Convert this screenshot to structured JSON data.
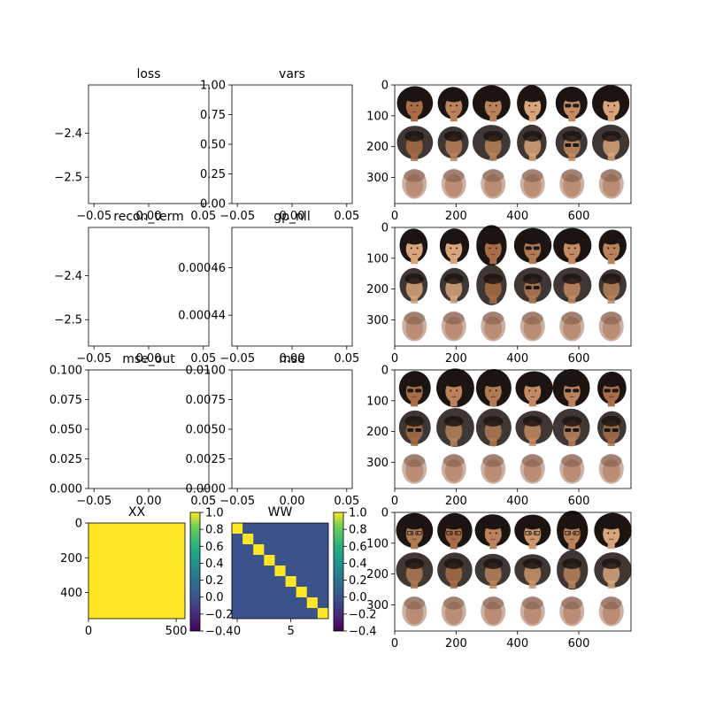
{
  "figure": {
    "colors": {
      "axes_edge": "#000000",
      "background": "#ffffff",
      "viridis_yellow": "#fde725",
      "viridis_teal": "#3b528b",
      "viridis_purple": "#440154"
    }
  },
  "chart_data": [
    {
      "id": "loss",
      "type": "line",
      "title": "loss",
      "xlabel": "",
      "ylabel": "",
      "series": [],
      "xlim": [
        -0.055,
        0.055
      ],
      "ylim": [
        -2.56,
        -2.29
      ],
      "xticks": [
        -0.05,
        0.0,
        0.05
      ],
      "xtick_labels": [
        "−0.05",
        "0.00",
        "0.05"
      ],
      "yticks": [
        -2.4,
        -2.5
      ],
      "ytick_labels": [
        "−2.4",
        "−2.5"
      ],
      "grid": false
    },
    {
      "id": "vars",
      "type": "line",
      "title": "vars",
      "xlabel": "",
      "ylabel": "",
      "series": [],
      "xlim": [
        -0.055,
        0.055
      ],
      "ylim": [
        0.0,
        1.0
      ],
      "xticks": [
        -0.05,
        0.0,
        0.05
      ],
      "xtick_labels": [
        "−0.05",
        "0.00",
        "0.05"
      ],
      "yticks": [
        0.0,
        0.25,
        0.5,
        0.75,
        1.0
      ],
      "ytick_labels": [
        "0.00",
        "0.25",
        "0.50",
        "0.75",
        "1.00"
      ],
      "grid": false
    },
    {
      "id": "recon_term",
      "type": "line",
      "title": "recon_term",
      "xlabel": "",
      "ylabel": "",
      "series": [],
      "xlim": [
        -0.055,
        0.055
      ],
      "ylim": [
        -2.56,
        -2.29
      ],
      "xticks": [
        -0.05,
        0.0,
        0.05
      ],
      "xtick_labels": [
        "−0.05",
        "0.00",
        "0.05"
      ],
      "yticks": [
        -2.4,
        -2.5
      ],
      "ytick_labels": [
        "−2.4",
        "−2.5"
      ],
      "grid": false
    },
    {
      "id": "gp_nll",
      "type": "line",
      "title": "gp_nll",
      "xlabel": "",
      "ylabel": "",
      "series": [],
      "xlim": [
        -0.055,
        0.055
      ],
      "ylim": [
        0.000427,
        0.000477
      ],
      "xticks": [
        -0.05,
        0.0,
        0.05
      ],
      "xtick_labels": [
        "−0.05",
        "0.00",
        "0.05"
      ],
      "yticks": [
        0.00046,
        0.00044
      ],
      "ytick_labels": [
        "0.00046",
        "0.00044"
      ],
      "grid": false
    },
    {
      "id": "mse_out",
      "type": "line",
      "title": "mse_out",
      "xlabel": "",
      "ylabel": "",
      "series": [],
      "xlim": [
        -0.055,
        0.055
      ],
      "ylim": [
        0.0,
        0.1
      ],
      "xticks": [
        -0.05,
        0.0,
        0.05
      ],
      "xtick_labels": [
        "−0.05",
        "0.00",
        "0.05"
      ],
      "yticks": [
        0.0,
        0.025,
        0.05,
        0.075,
        0.1
      ],
      "ytick_labels": [
        "0.000",
        "0.025",
        "0.050",
        "0.075",
        "0.100"
      ],
      "grid": false
    },
    {
      "id": "mse",
      "type": "line",
      "title": "mse",
      "xlabel": "",
      "ylabel": "",
      "series": [],
      "xlim": [
        -0.055,
        0.055
      ],
      "ylim": [
        0.0,
        0.01
      ],
      "xticks": [
        -0.05,
        0.0,
        0.05
      ],
      "xtick_labels": [
        "−0.05",
        "0.00",
        "0.05"
      ],
      "yticks": [
        0.0,
        0.0025,
        0.005,
        0.0075,
        0.01
      ],
      "ytick_labels": [
        "0.0000",
        "0.0025",
        "0.0050",
        "0.0075",
        "0.0100"
      ],
      "grid": false
    },
    {
      "id": "XX",
      "type": "heatmap",
      "title": "XX",
      "description_value": "uniform matrix of value 1.0",
      "value": 1.0,
      "size": 550,
      "xlim": [
        0,
        550
      ],
      "ylim": [
        550,
        0
      ],
      "xticks": [
        0,
        500
      ],
      "xtick_labels": [
        "0",
        "500"
      ],
      "yticks": [
        0,
        200,
        400
      ],
      "ytick_labels": [
        "0",
        "200",
        "400"
      ],
      "colorbar": {
        "min": -0.4,
        "max": 1.0,
        "ticks": [
          1.0,
          0.8,
          0.6,
          0.4,
          0.2,
          0.0,
          -0.2,
          -0.4
        ],
        "tick_labels": [
          "1.0",
          "0.8",
          "0.6",
          "0.4",
          "0.2",
          "0.0",
          "−0.2",
          "−0.4"
        ]
      }
    },
    {
      "id": "WW",
      "type": "heatmap",
      "title": "WW",
      "n": 9,
      "diagonal_value": 1.0,
      "offdiagonal_value": 0.0,
      "xlim": [
        -0.5,
        8.5
      ],
      "ylim": [
        8.5,
        -0.5
      ],
      "xticks": [
        0,
        5
      ],
      "xtick_labels": [
        "0",
        "5"
      ],
      "yticks": [],
      "ytick_labels": [],
      "colorbar": {
        "min": -0.4,
        "max": 1.0,
        "ticks": [
          1.0,
          0.8,
          0.6,
          0.4,
          0.2,
          0.0,
          -0.2,
          -0.4
        ],
        "tick_labels": [
          "1.0",
          "0.8",
          "0.6",
          "0.4",
          "0.2",
          "0.0",
          "−0.2",
          "−0.4"
        ]
      }
    },
    {
      "id": "faces_1",
      "type": "image",
      "title": "",
      "rows": 3,
      "cols": 6,
      "xlim": [
        0,
        770
      ],
      "ylim": [
        385,
        0
      ],
      "xticks": [
        0,
        200,
        400,
        600
      ],
      "xtick_labels": [
        "0",
        "200",
        "400",
        "600"
      ],
      "yticks": [
        0,
        100,
        200,
        300
      ],
      "ytick_labels": [
        "0",
        "100",
        "200",
        "300"
      ],
      "row_kinds": [
        "original",
        "reconstruction",
        "blurry"
      ],
      "accessories": [
        "none",
        "none",
        "none",
        "none",
        "sunglasses",
        "none"
      ]
    },
    {
      "id": "faces_2",
      "type": "image",
      "title": "",
      "rows": 3,
      "cols": 6,
      "xlim": [
        0,
        770
      ],
      "ylim": [
        385,
        0
      ],
      "xticks": [
        0,
        200,
        400,
        600
      ],
      "xtick_labels": [
        "0",
        "200",
        "400",
        "600"
      ],
      "yticks": [
        0,
        100,
        200,
        300
      ],
      "ytick_labels": [
        "0",
        "100",
        "200",
        "300"
      ],
      "row_kinds": [
        "original",
        "reconstruction",
        "blurry"
      ],
      "accessories": [
        "none",
        "none",
        "none",
        "sunglasses",
        "none",
        "none"
      ]
    },
    {
      "id": "faces_3",
      "type": "image",
      "title": "",
      "rows": 3,
      "cols": 6,
      "xlim": [
        0,
        770
      ],
      "ylim": [
        385,
        0
      ],
      "xticks": [
        0,
        200,
        400,
        600
      ],
      "xtick_labels": [
        "0",
        "200",
        "400",
        "600"
      ],
      "yticks": [
        0,
        100,
        200,
        300
      ],
      "ytick_labels": [
        "0",
        "100",
        "200",
        "300"
      ],
      "row_kinds": [
        "original",
        "reconstruction",
        "blurry"
      ],
      "accessories": [
        "sunglasses",
        "none",
        "none",
        "none",
        "sunglasses",
        "sunglasses"
      ]
    },
    {
      "id": "faces_4",
      "type": "image",
      "title": "",
      "rows": 3,
      "cols": 6,
      "xlim": [
        0,
        770
      ],
      "ylim": [
        385,
        0
      ],
      "xticks": [
        0,
        200,
        400,
        600
      ],
      "xtick_labels": [
        "0",
        "200",
        "400",
        "600"
      ],
      "yticks": [
        0,
        100,
        200,
        300
      ],
      "ytick_labels": [
        "0",
        "100",
        "200",
        "300"
      ],
      "row_kinds": [
        "original",
        "reconstruction",
        "blurry"
      ],
      "accessories": [
        "glasses",
        "glasses",
        "none",
        "glasses",
        "glasses",
        "none"
      ]
    }
  ]
}
